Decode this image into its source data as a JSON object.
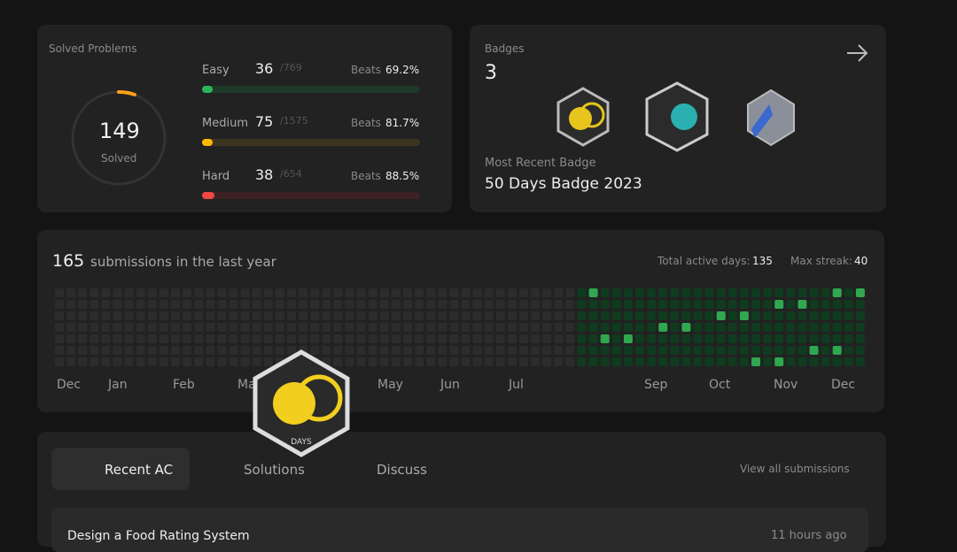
{
  "solved": {
    "title": "Solved Problems",
    "count": "149",
    "label": "Solved",
    "rows": [
      {
        "name": "Easy",
        "solved": 36,
        "total": "/769",
        "beats_label": "Beats",
        "beats": "69.2%",
        "color": "#2db55d",
        "track": "#1f3a28"
      },
      {
        "name": "Medium",
        "solved": 75,
        "total": "/1575",
        "beats_label": "Beats",
        "beats": "81.7%",
        "color": "#ffb800",
        "track": "#3d3420"
      },
      {
        "name": "Hard",
        "solved": 38,
        "total": "/654",
        "beats_label": "Beats",
        "beats": "88.5%",
        "color": "#ef4743",
        "track": "#3d2224"
      }
    ]
  },
  "badges": {
    "title": "Badges",
    "count": "3",
    "recent_label": "Most Recent Badge",
    "recent_name": "50 Days Badge 2023"
  },
  "activity": {
    "count": "165",
    "text": "submissions in the last year",
    "active_label": "Total active days:",
    "active": "135",
    "streak_label": "Max streak:",
    "streak": "40",
    "months": [
      "Dec",
      "Jan",
      "Feb",
      "Mar",
      "May",
      "Jun",
      "Jul",
      "Sep",
      "Oct",
      "Nov",
      "Dec"
    ]
  },
  "popup": {
    "badge_text": "DAYS"
  },
  "tabs": {
    "items": [
      "Recent AC",
      "Solutions",
      "Discuss"
    ],
    "view_all": "View all submissions"
  },
  "list": {
    "items": [
      {
        "title": "Design a Food Rating System",
        "time": "11 hours ago"
      }
    ]
  }
}
